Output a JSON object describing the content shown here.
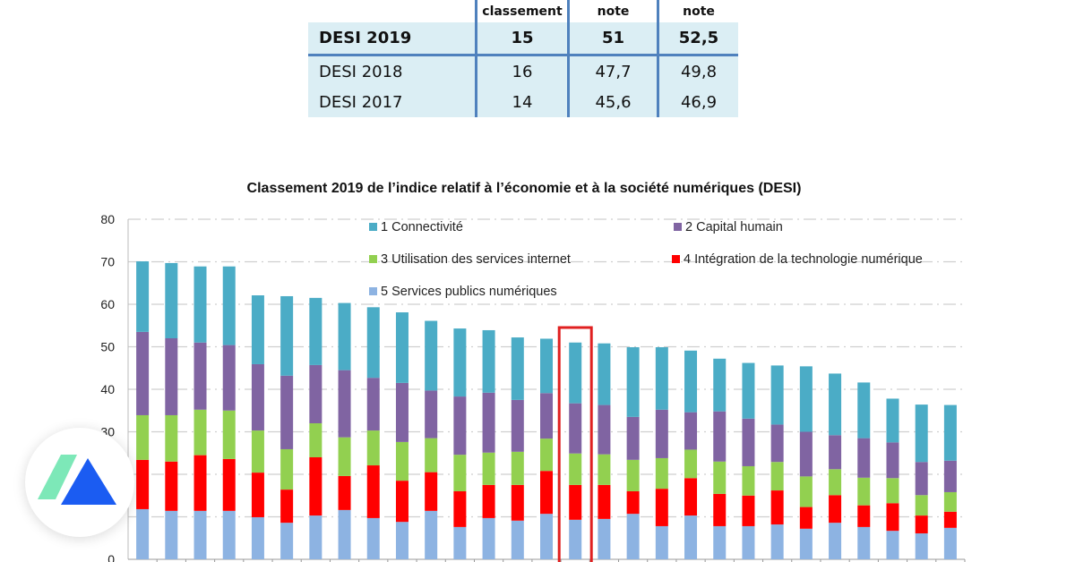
{
  "table": {
    "headers": [
      "",
      "classement",
      "note",
      "note"
    ],
    "rows": [
      {
        "label": "DESI 2019",
        "classement": "15",
        "note1": "51",
        "note2": "52,5",
        "bold": true
      },
      {
        "label": "DESI 2018",
        "classement": "16",
        "note1": "47,7",
        "note2": "49,8"
      },
      {
        "label": "DESI 2017",
        "classement": "14",
        "note1": "45,6",
        "note2": "46,9"
      }
    ]
  },
  "chart_data": {
    "type": "bar",
    "stacked": true,
    "title": "Classement 2019 de l’indice relatif à l’économie et à la société numériques (DESI)",
    "xlabel": "",
    "ylabel": "",
    "ylim": [
      0,
      80
    ],
    "yticks": [
      0,
      10,
      20,
      30,
      40,
      50,
      60,
      70,
      80
    ],
    "grid": true,
    "legend_placement": "top",
    "highlighted_bar_index": 15,
    "highlight_color": "#e02020",
    "series": [
      {
        "name": "5 Services publics numériques",
        "color": "#8db3e2",
        "values": [
          11.8,
          11.4,
          11.4,
          11.4,
          9.9,
          8.6,
          10.3,
          11.6,
          9.7,
          8.8,
          11.4,
          7.6,
          9.7,
          9.1,
          10.7,
          9.3,
          9.5,
          10.7,
          7.8,
          10.3,
          7.8,
          7.8,
          8.2,
          7.2,
          8.6,
          7.6,
          6.7,
          6.1,
          7.4
        ]
      },
      {
        "name": "4 Intégration de la technologie numérique",
        "color": "#ff0000",
        "values": [
          11.6,
          11.6,
          13.1,
          12.2,
          10.5,
          7.8,
          13.7,
          8.0,
          12.4,
          9.7,
          9.1,
          8.4,
          7.8,
          8.4,
          10.1,
          8.2,
          8.0,
          5.3,
          8.8,
          8.8,
          7.6,
          7.2,
          8.0,
          5.1,
          6.5,
          5.1,
          6.5,
          4.2,
          3.8
        ]
      },
      {
        "name": "3 Utilisation des services internet",
        "color": "#92d050",
        "values": [
          10.5,
          10.9,
          10.7,
          11.4,
          9.9,
          9.5,
          8.0,
          9.1,
          8.2,
          9.1,
          8.0,
          8.6,
          7.6,
          7.8,
          7.6,
          7.4,
          7.2,
          7.4,
          7.2,
          6.7,
          7.6,
          6.9,
          6.7,
          7.2,
          6.1,
          6.5,
          5.9,
          4.8,
          4.6
        ]
      },
      {
        "name": "2 Capital humain",
        "color": "#8064a2",
        "values": [
          19.6,
          18.1,
          15.8,
          15.4,
          15.6,
          17.3,
          13.7,
          15.8,
          12.4,
          13.9,
          11.2,
          13.7,
          14.1,
          12.2,
          10.7,
          11.8,
          11.6,
          10.1,
          11.4,
          8.8,
          11.8,
          11.2,
          8.8,
          10.5,
          8.0,
          9.3,
          8.4,
          7.8,
          7.4
        ]
      },
      {
        "name": "1 Connectivité",
        "color": "#4bacc6",
        "values": [
          16.6,
          17.7,
          17.9,
          18.5,
          16.2,
          18.7,
          15.8,
          15.8,
          16.6,
          16.6,
          16.4,
          16.0,
          14.7,
          14.7,
          12.8,
          14.3,
          14.5,
          16.4,
          14.7,
          14.5,
          12.4,
          13.1,
          13.9,
          15.4,
          14.5,
          13.1,
          10.3,
          13.5,
          13.1
        ]
      }
    ],
    "legend_order": [
      4,
      3,
      2,
      1,
      0
    ]
  },
  "logo": {
    "colors": [
      "#7de8b8",
      "#1b5cf2"
    ]
  }
}
